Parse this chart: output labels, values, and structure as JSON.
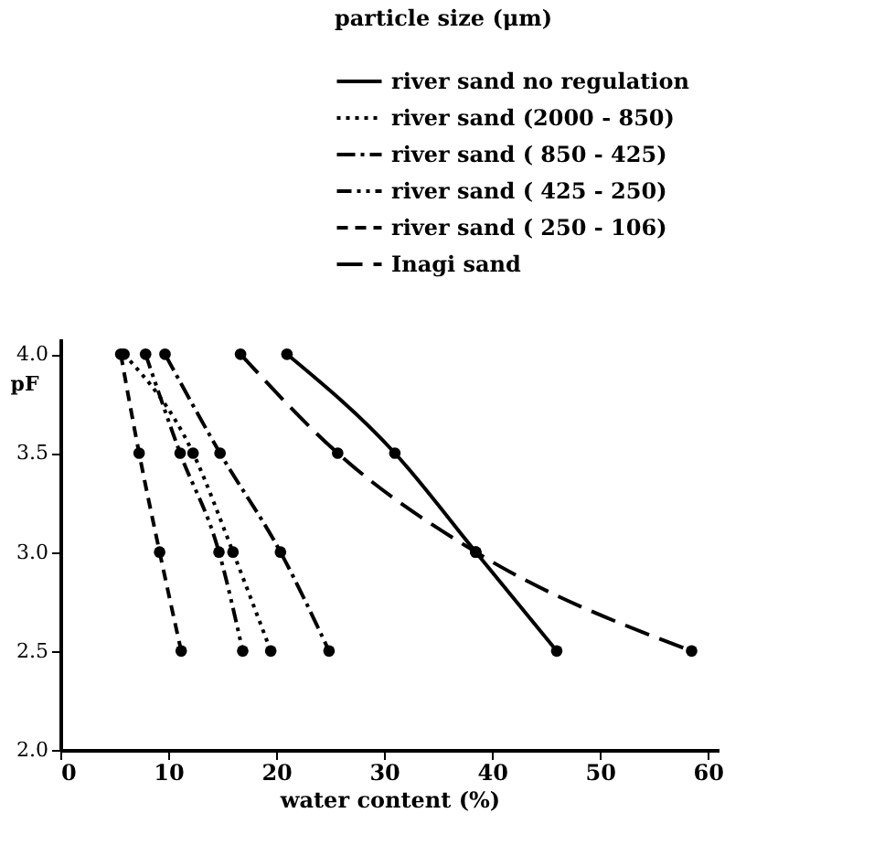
{
  "chart_data": {
    "type": "line",
    "xlabel": "water content   (%)",
    "ylabel": "pF",
    "legend_title": "particle size (μm)",
    "series": [
      {
        "name": "river sand    no regulation",
        "color": "#000000",
        "line_style": "solid",
        "x": [
          21,
          31,
          38.5,
          46
        ],
        "values": [
          4.0,
          3.5,
          3.0,
          2.5
        ]
      },
      {
        "name": "river sand (2000 - 850)",
        "color": "#000000",
        "line_style": "dotted",
        "x": [
          5.9,
          12.3,
          16,
          19.5
        ],
        "values": [
          4.0,
          3.5,
          3.0,
          2.5
        ]
      },
      {
        "name": "river sand ( 850 - 425)",
        "color": "#000000",
        "line_style": "dashed",
        "x": [
          9.7,
          14.8,
          20.4,
          24.9
        ],
        "values": [
          4.0,
          3.5,
          3.0,
          2.5
        ]
      },
      {
        "name": "river sand ( 425 - 250)",
        "color": "#000000",
        "line_style": "dashed",
        "x": [
          7.9,
          11.1,
          14.7,
          16.9
        ],
        "values": [
          4.0,
          3.5,
          3.0,
          2.5
        ]
      },
      {
        "name": "river sand ( 250 - 106)",
        "color": "#000000",
        "line_style": "dashed",
        "x": [
          5.6,
          7.3,
          9.2,
          11.2
        ],
        "values": [
          4.0,
          3.5,
          3.0,
          2.5
        ]
      },
      {
        "name": "Inagi sand",
        "color": "#000000",
        "line_style": "dashed",
        "x": [
          16.7,
          25.7,
          38.5,
          58.5
        ],
        "values": [
          4.0,
          3.5,
          3.0,
          2.5
        ]
      }
    ],
    "xlim": [
      0,
      61
    ],
    "xticks": [
      0,
      10,
      20,
      30,
      40,
      50,
      60
    ],
    "ylim": [
      2.0,
      4.08
    ],
    "yticks": [
      {
        "value": 2.0,
        "label": "2.0"
      },
      {
        "value": 2.5,
        "label": "2.5"
      },
      {
        "value": 3.0,
        "label": "3.0"
      },
      {
        "value": 3.5,
        "label": "3.5"
      },
      {
        "value": 4.0,
        "label": "4.0"
      }
    ],
    "marker": "circle",
    "grid": false,
    "legend": "top right"
  }
}
